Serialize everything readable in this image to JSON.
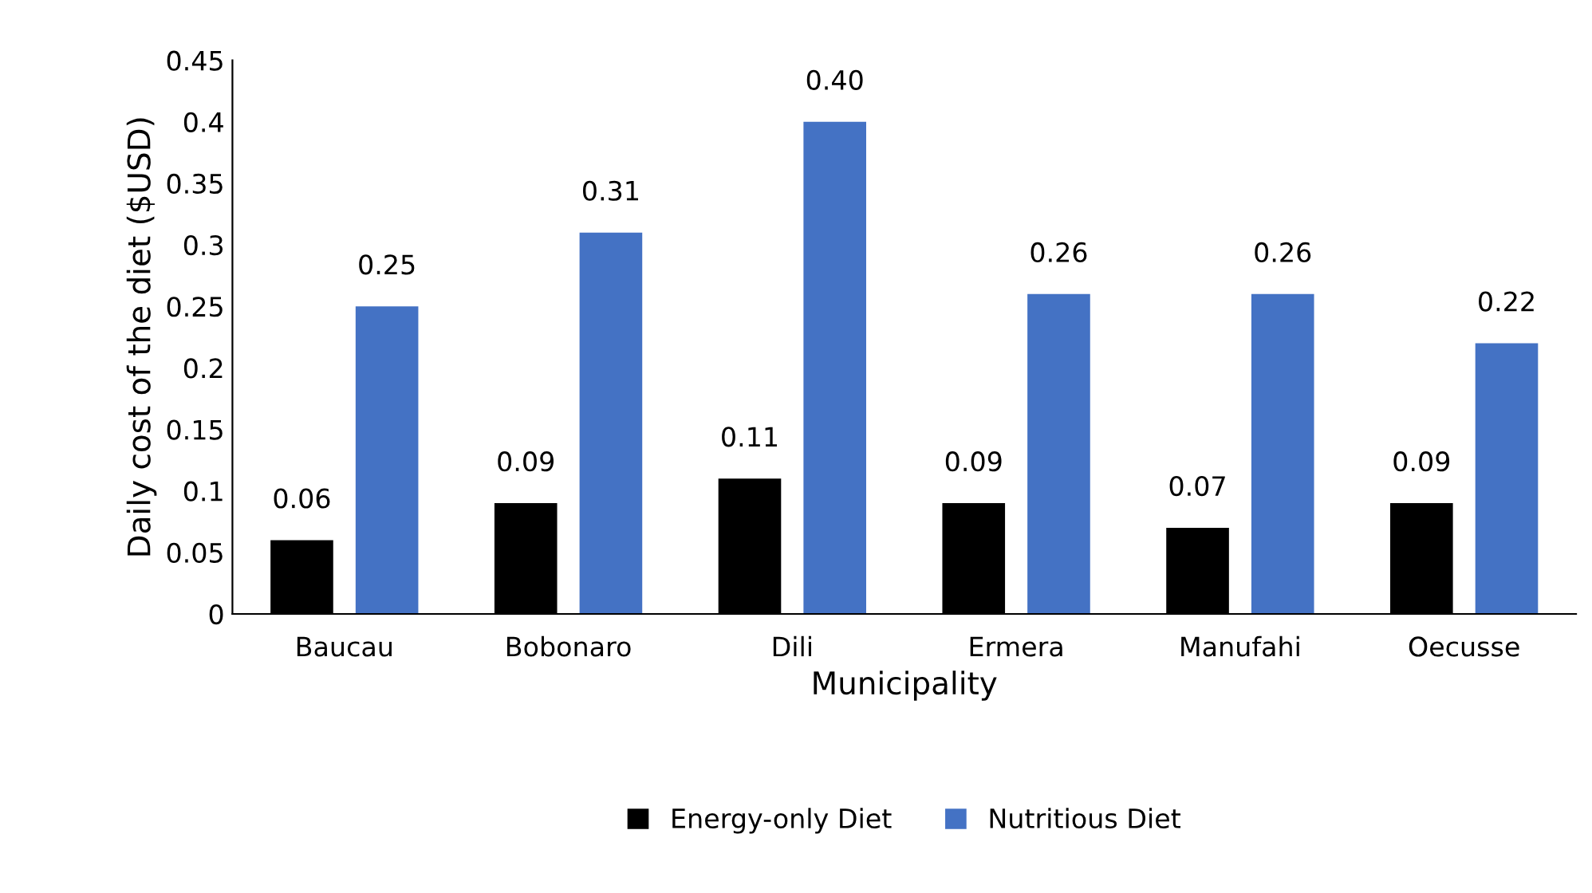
{
  "chart_data": {
    "type": "bar",
    "xlabel": "Municipality",
    "ylabel": "Daily cost of the diet ($USD)",
    "categories": [
      "Baucau",
      "Bobonaro",
      "Dili",
      "Ermera",
      "Manufahi",
      "Oecusse"
    ],
    "series": [
      {
        "name": "Energy-only Diet",
        "color": "#000000",
        "values": [
          0.06,
          0.09,
          0.11,
          0.09,
          0.07,
          0.09
        ],
        "value_labels": [
          "0.06",
          "0.09",
          "0.11",
          "0.09",
          "0.07",
          "0.09"
        ]
      },
      {
        "name": "Nutritious Diet",
        "color": "#4472c4",
        "values": [
          0.25,
          0.31,
          0.4,
          0.26,
          0.26,
          0.22
        ],
        "value_labels": [
          "0.25",
          "0.31",
          "0.40",
          "0.26",
          "0.26",
          "0.22"
        ]
      }
    ],
    "ylim": [
      0,
      0.45
    ],
    "yticks": [
      0,
      0.05,
      0.1,
      0.15,
      0.2,
      0.25,
      0.3,
      0.35,
      0.4,
      0.45
    ],
    "grid": false,
    "legend": "bottom"
  }
}
